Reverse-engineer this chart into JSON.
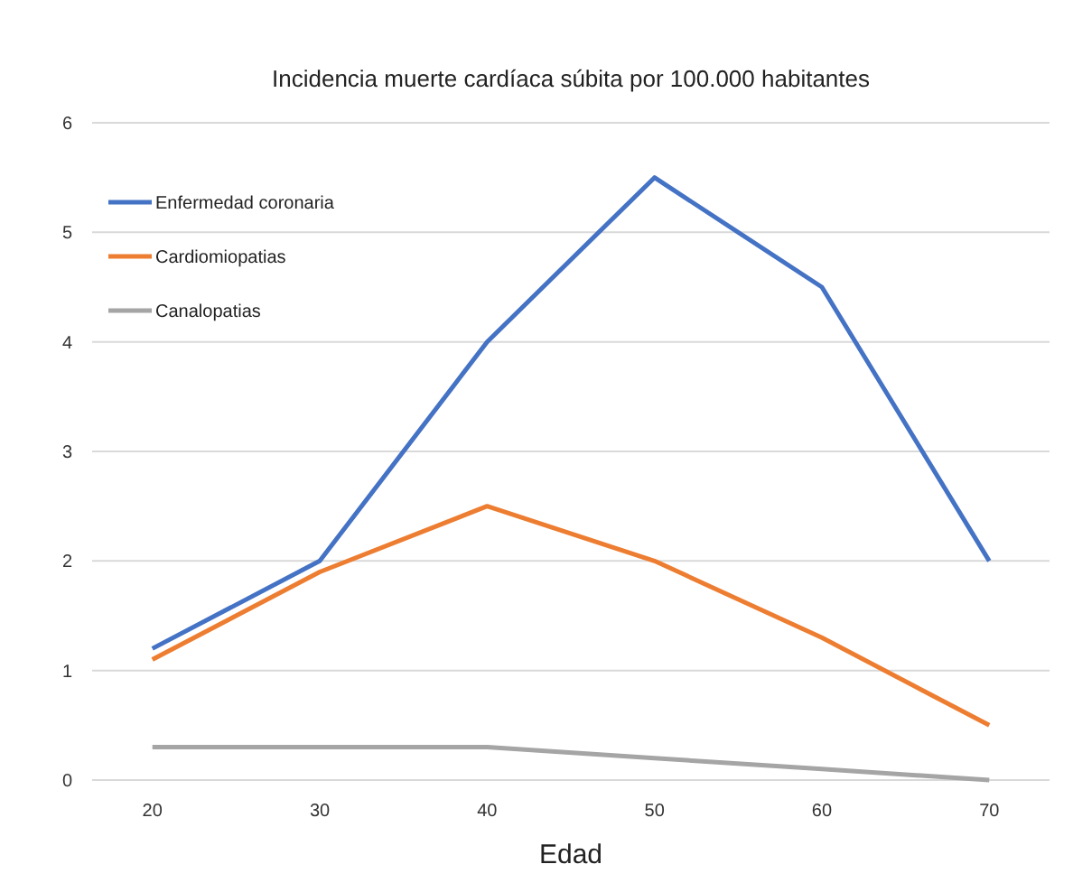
{
  "chart_data": {
    "type": "line",
    "title": "Incidencia muerte cardíaca súbita por 100.000 habitantes",
    "xlabel": "Edad",
    "categories": [
      "20",
      "30",
      "40",
      "50",
      "60",
      "70"
    ],
    "series": [
      {
        "name": "Enfermedad coronaria",
        "color": "#4472c4",
        "values": [
          1.2,
          2,
          4,
          5.5,
          4.5,
          2
        ]
      },
      {
        "name": "Cardiomiopatias",
        "color": "#ed7d31",
        "values": [
          1.1,
          1.9,
          2.5,
          2,
          1.3,
          0.5
        ]
      },
      {
        "name": "Canalopatias",
        "color": "#a5a5a5",
        "values": [
          0.3,
          0.3,
          0.3,
          0.2,
          0.1,
          0
        ]
      }
    ],
    "ylim": [
      0,
      6
    ],
    "yticks": [
      0,
      1,
      2,
      3,
      4,
      5,
      6
    ],
    "grid": "y",
    "legend": "top left",
    "marker": "none",
    "line_style": "solid"
  }
}
